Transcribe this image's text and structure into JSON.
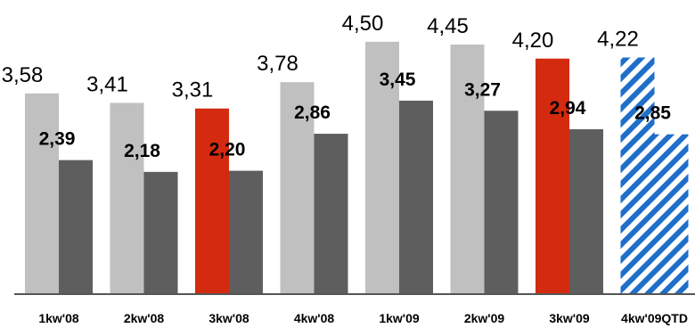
{
  "chart_data": {
    "type": "bar",
    "categories": [
      "1kw'08",
      "2kw'08",
      "3kw'08",
      "4kw'08",
      "1kw'09",
      "2kw'09",
      "3kw'09",
      "4kw'09QTD"
    ],
    "series": [
      {
        "values": [
          3.58,
          3.41,
          3.31,
          3.78,
          4.5,
          4.45,
          4.2,
          4.22
        ],
        "labels": [
          "3,58",
          "3,41",
          "3,31",
          "3,78",
          "4,50",
          "4,45",
          "4,20",
          "4,22"
        ],
        "color": "#c0c0c0"
      },
      {
        "values": [
          2.39,
          2.18,
          2.2,
          2.86,
          3.45,
          3.27,
          2.94,
          2.85
        ],
        "labels": [
          "2,39",
          "2,18",
          "2,20",
          "2,86",
          "3,45",
          "3,27",
          "2,94",
          "2,85"
        ],
        "color": "#5e5e5e"
      }
    ],
    "highlight": {
      "color": "#d42a0f",
      "series_index": 0,
      "category_indexes": [
        2,
        6
      ]
    },
    "projected": {
      "color": "#1f6fc9",
      "pattern": "diagonal-stripes",
      "category_index": 7
    },
    "ylim": [
      0,
      4.8
    ],
    "grid": false,
    "legend": "none",
    "axis_color": "#555555"
  }
}
